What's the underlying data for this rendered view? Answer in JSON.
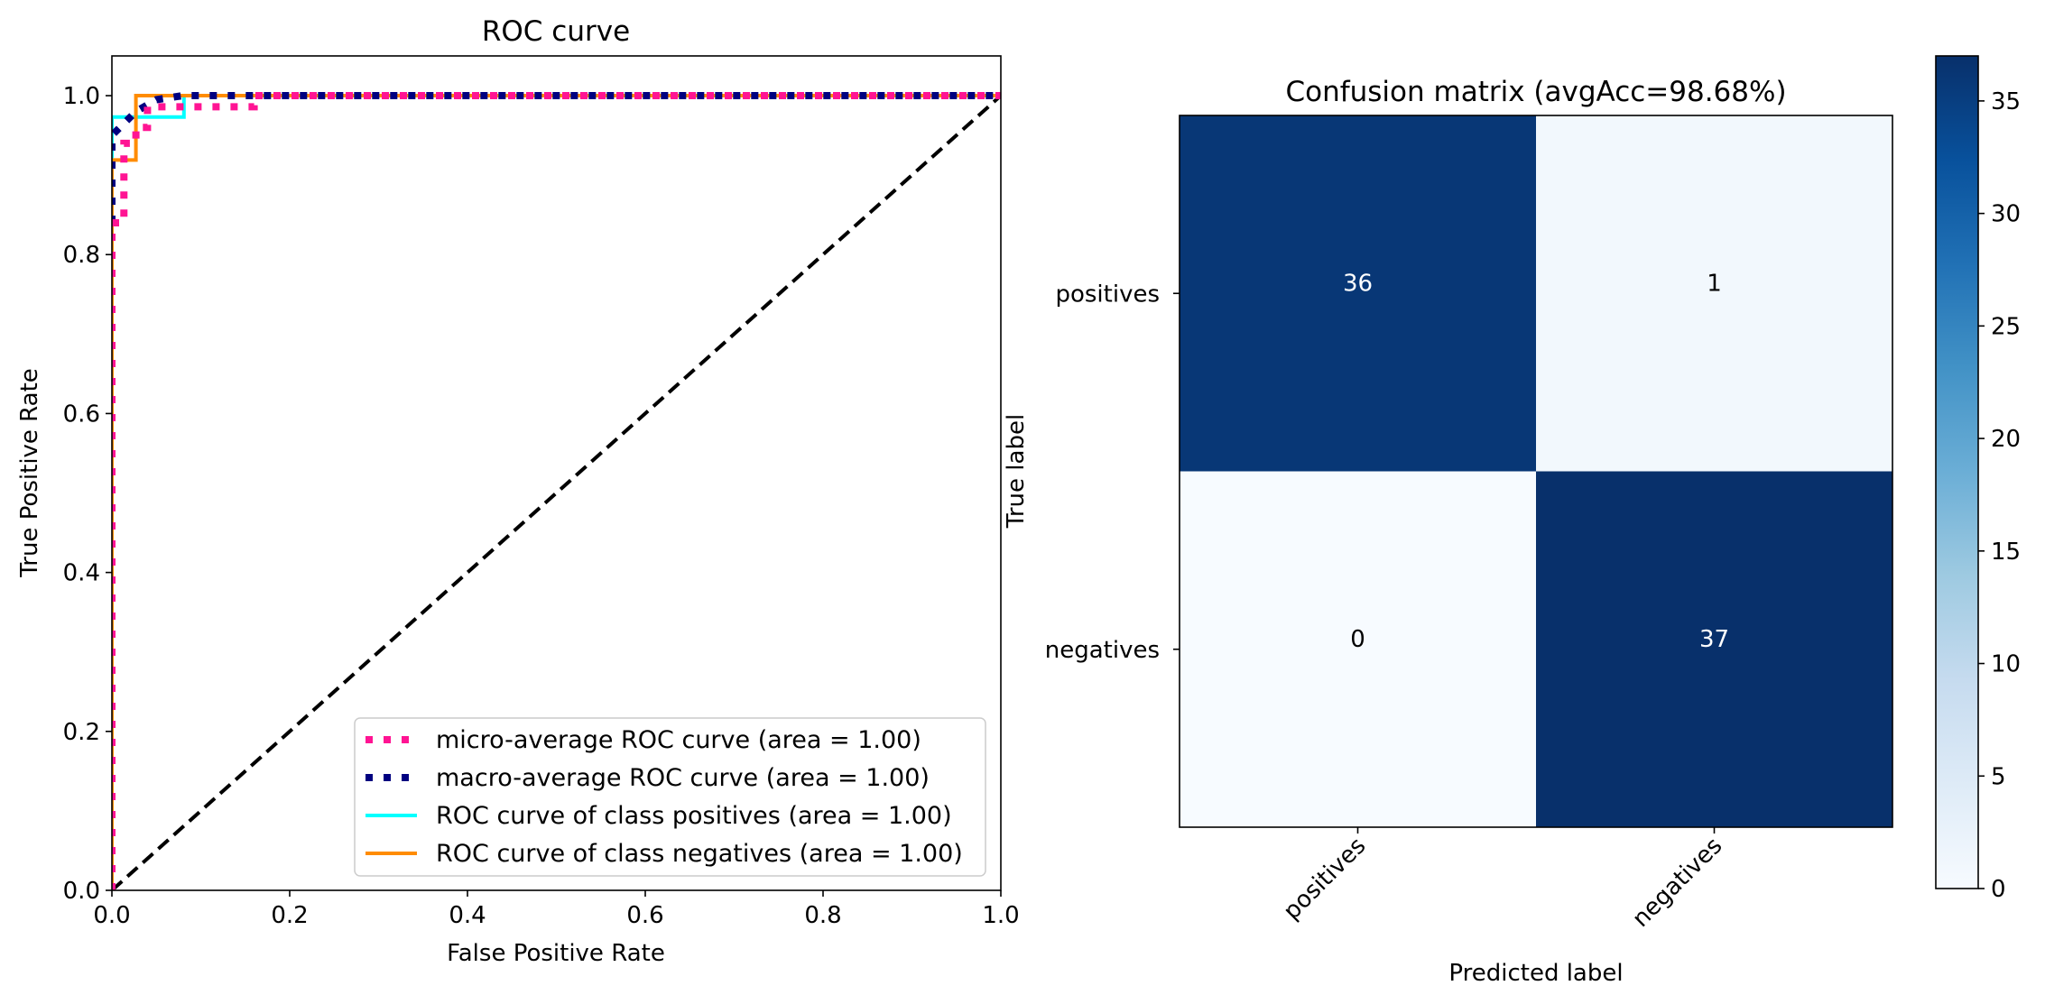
{
  "chart_data": [
    {
      "type": "line",
      "title": "ROC curve",
      "xlabel": "False Positive Rate",
      "ylabel": "True Positive Rate",
      "xlim": [
        0.0,
        1.0
      ],
      "ylim": [
        0.0,
        1.05
      ],
      "xticks": [
        "0.0",
        "0.2",
        "0.4",
        "0.6",
        "0.8",
        "1.0"
      ],
      "yticks": [
        "0.0",
        "0.2",
        "0.4",
        "0.6",
        "0.8",
        "1.0"
      ],
      "grid": false,
      "legend_position": "bottom-right",
      "series": [
        {
          "name": "micro-average ROC curve (area = 1.00)",
          "style": "dotted",
          "color": "#ff1493",
          "x": [
            0.0,
            0.0,
            0.0135,
            0.0135,
            0.027,
            0.027,
            0.04,
            0.04,
            0.09,
            0.09,
            0.16,
            0.16,
            1.0
          ],
          "y": [
            0.0,
            0.84,
            0.84,
            0.94,
            0.94,
            0.96,
            0.96,
            0.986,
            0.986,
            0.986,
            0.986,
            1.0,
            1.0
          ]
        },
        {
          "name": "macro-average ROC curve (area = 1.00)",
          "style": "dotted",
          "color": "#000080",
          "x": [
            0.0,
            0.0,
            0.027,
            0.05,
            0.08,
            1.0
          ],
          "y": [
            0.0,
            0.95,
            0.98,
            0.995,
            1.0,
            1.0
          ]
        },
        {
          "name": "ROC curve of class positives (area = 1.00)",
          "style": "solid",
          "color": "#00ffff",
          "x": [
            0.0,
            0.0,
            0.081,
            0.081,
            1.0
          ],
          "y": [
            0.0,
            0.973,
            0.973,
            1.0,
            1.0
          ]
        },
        {
          "name": "ROC curve of class negatives (area = 1.00)",
          "style": "solid",
          "color": "#ff8c00",
          "x": [
            0.0,
            0.0,
            0.027,
            0.027,
            1.0
          ],
          "y": [
            0.0,
            0.919,
            0.919,
            1.0,
            1.0
          ]
        },
        {
          "style": "dashed",
          "color": "#000000",
          "x": [
            0.0,
            1.0
          ],
          "y": [
            0.0,
            1.0
          ]
        }
      ]
    },
    {
      "type": "heatmap",
      "title": "Confusion matrix (avgAcc=98.68%)",
      "xlabel": "Predicted label",
      "ylabel": "True label",
      "x_categories": [
        "positives",
        "negatives"
      ],
      "y_categories": [
        "positives",
        "negatives"
      ],
      "values": [
        [
          36,
          1
        ],
        [
          0,
          37
        ]
      ],
      "value_labels": [
        [
          "36",
          "1"
        ],
        [
          "0",
          "37"
        ]
      ],
      "colormap": "Blues",
      "colorbar": {
        "min": 0,
        "max": 37,
        "ticks": [
          0,
          5,
          10,
          15,
          20,
          25,
          30,
          35
        ],
        "tick_labels": [
          "0",
          "5",
          "10",
          "15",
          "20",
          "25",
          "30",
          "35"
        ]
      }
    }
  ]
}
